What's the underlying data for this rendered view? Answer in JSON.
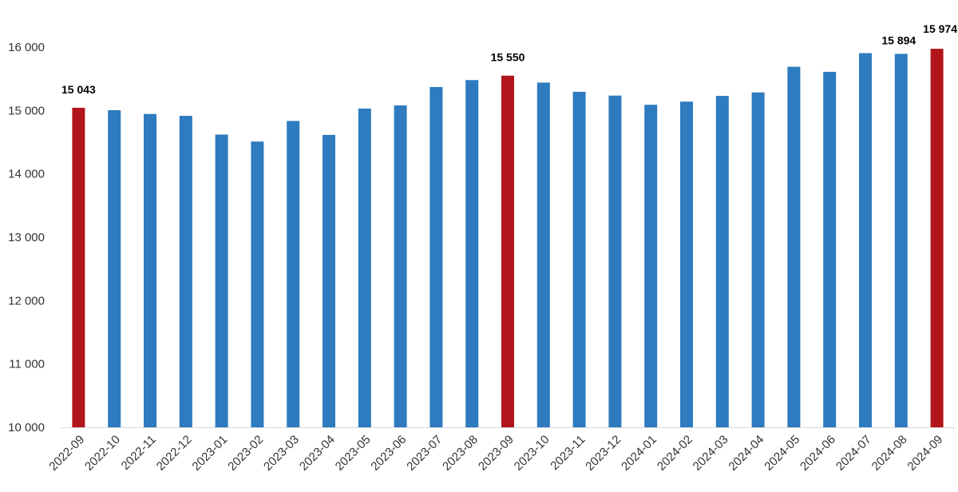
{
  "chart_data": {
    "type": "bar",
    "title": "",
    "xlabel": "",
    "ylabel": "",
    "ylim": [
      10000,
      16000
    ],
    "yticks": [
      "10 000",
      "11 000",
      "12 000",
      "13 000",
      "14 000",
      "15 000",
      "16 000"
    ],
    "ytick_values": [
      10000,
      11000,
      12000,
      13000,
      14000,
      15000,
      16000
    ],
    "grid": false,
    "legend": "none",
    "colors": {
      "default": "#2e7bbf",
      "highlight": "#b2151b"
    },
    "categories": [
      "2022-09",
      "2022-10",
      "2022-11",
      "2022-12",
      "2023-01",
      "2023-02",
      "2023-03",
      "2023-04",
      "2023-05",
      "2023-06",
      "2023-07",
      "2023-08",
      "2023-09",
      "2023-10",
      "2023-11",
      "2023-12",
      "2024-01",
      "2024-02",
      "2024-03",
      "2024-04",
      "2024-05",
      "2024-06",
      "2024-07",
      "2024-08",
      "2024-09"
    ],
    "values": [
      15043,
      15005,
      14945,
      14915,
      14620,
      14510,
      14835,
      14615,
      15030,
      15080,
      15370,
      15480,
      15550,
      15440,
      15295,
      15235,
      15090,
      15140,
      15230,
      15285,
      15690,
      15610,
      15905,
      15894,
      15974
    ],
    "highlighted": [
      0,
      12,
      24
    ],
    "data_labels": [
      {
        "index": 0,
        "text": "15 043"
      },
      {
        "index": 12,
        "text": "15 550"
      },
      {
        "index": 23,
        "text": "15 894"
      },
      {
        "index": 24,
        "text": "15 974"
      }
    ]
  }
}
